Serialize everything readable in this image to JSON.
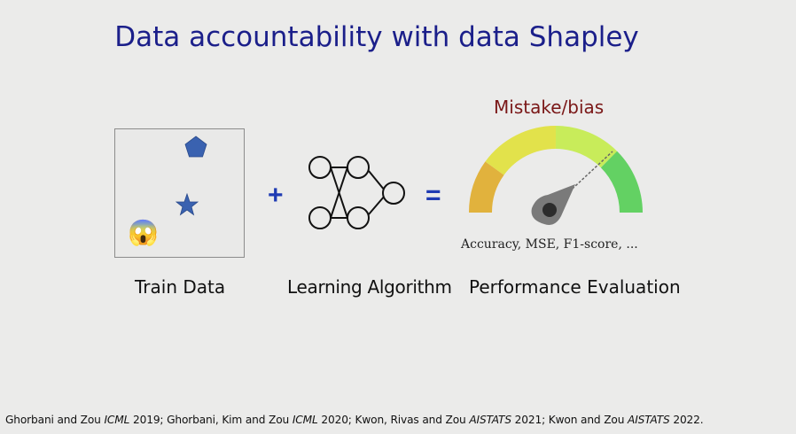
{
  "slide": {
    "title": "Data accountability with data Shapley",
    "operators": {
      "plus": "+",
      "equals": "="
    },
    "train_data": {
      "label": "Train Data",
      "emoji": "😱",
      "icons": [
        "pentagon-icon",
        "star-icon",
        "scream-emoji-icon"
      ],
      "shape_color": "#3a62b0"
    },
    "learning_algorithm": {
      "label": "Learning Algorithm",
      "icon": "neural-network-icon"
    },
    "performance": {
      "label": "Performance Evaluation",
      "gauge_label": "Mistake/bias",
      "metrics": "Accuracy, MSE, F1-score, ...",
      "icon": "gauge-icon",
      "gauge_colors": [
        "#e1b23d",
        "#e2e24b",
        "#c8ec5a",
        "#63d163"
      ]
    },
    "citation": {
      "parts": [
        {
          "text": "Ghorbani and Zou ",
          "italic": false
        },
        {
          "text": "ICML",
          "italic": true
        },
        {
          "text": " 2019; Ghorbani, Kim and Zou ",
          "italic": false
        },
        {
          "text": "ICML",
          "italic": true
        },
        {
          "text": " 2020; Kwon, Rivas and Zou ",
          "italic": false
        },
        {
          "text": "AISTATS",
          "italic": true
        },
        {
          "text": " 2021; Kwon and Zou ",
          "italic": false
        },
        {
          "text": "AISTATS",
          "italic": true
        },
        {
          "text": " 2022.",
          "italic": false
        }
      ]
    }
  }
}
